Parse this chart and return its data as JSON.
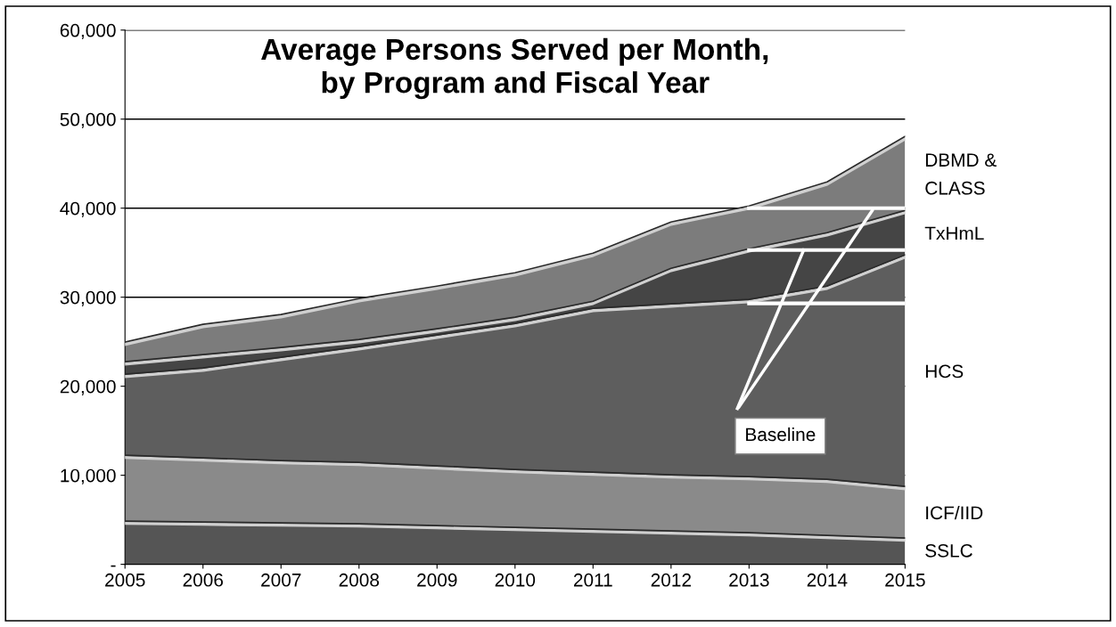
{
  "chart_data": {
    "type": "area",
    "stacked": true,
    "title": "Average Persons Served per Month,\nby Program and Fiscal Year",
    "x": [
      2005,
      2006,
      2007,
      2008,
      2009,
      2010,
      2011,
      2012,
      2013,
      2014,
      2015
    ],
    "series": [
      {
        "name": "SSLC",
        "color": "#555555",
        "values": [
          4600,
          4500,
          4400,
          4300,
          4100,
          3900,
          3700,
          3500,
          3300,
          3000,
          2700
        ]
      },
      {
        "name": "ICF/IID",
        "color": "#8a8a8a",
        "values": [
          7400,
          7200,
          7000,
          6900,
          6700,
          6500,
          6400,
          6300,
          6300,
          6300,
          5800
        ]
      },
      {
        "name": "HCS",
        "color": "#5e5e5e",
        "values": [
          9100,
          10100,
          11600,
          13000,
          14700,
          16400,
          18400,
          19200,
          19900,
          21700,
          26000
        ]
      },
      {
        "name": "TxHmL",
        "color": "#454545",
        "values": [
          1400,
          1500,
          1100,
          800,
          700,
          700,
          800,
          4000,
          5700,
          6000,
          5000
        ]
      },
      {
        "name": "DBMD &\nCLASS",
        "color": "#7c7c7c",
        "values": [
          2200,
          3400,
          3700,
          4600,
          4800,
          5000,
          5400,
          5200,
          4800,
          5700,
          8300
        ]
      }
    ],
    "xlim": [
      2005,
      2015
    ],
    "xticks": [
      2005,
      2006,
      2007,
      2008,
      2009,
      2010,
      2011,
      2012,
      2013,
      2014,
      2015
    ],
    "ylim": [
      0,
      60000
    ],
    "yticks": [
      {
        "value": 0,
        "label": "-"
      },
      {
        "value": 10000,
        "label": "10,000"
      },
      {
        "value": 20000,
        "label": "20,000"
      },
      {
        "value": 30000,
        "label": "30,000"
      },
      {
        "value": 40000,
        "label": "40,000"
      },
      {
        "value": 50000,
        "label": "50,000"
      },
      {
        "value": 60000,
        "label": "60,000"
      }
    ],
    "grid": "y",
    "legend": false,
    "ref_lines": [
      {
        "axis": "y",
        "value": 40000,
        "color": "#ffffff"
      },
      {
        "axis": "y",
        "value": 35300,
        "color": "#ffffff"
      },
      {
        "axis": "y",
        "value": 29300,
        "color": "#ffffff"
      }
    ],
    "annotations": [
      {
        "text": "Baseline",
        "x": 2014.6,
        "y": 40000
      }
    ]
  }
}
